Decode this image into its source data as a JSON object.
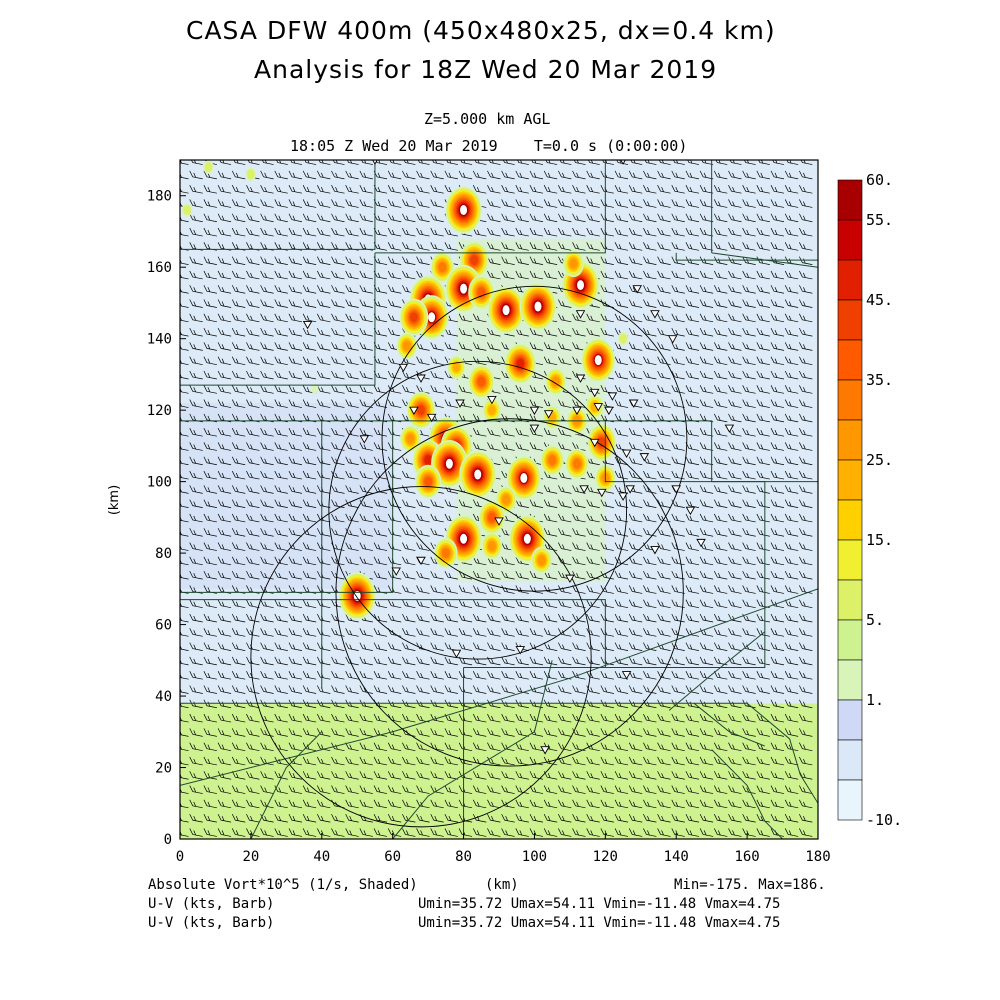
{
  "title": {
    "line1": "CASA DFW 400m (450x480x25, dx=0.4 km)",
    "line2": "Analysis for 18Z Wed 20 Mar 2019"
  },
  "subtitle": {
    "level": "Z=5.000 km AGL",
    "time": "18:05 Z Wed 20 Mar 2019    T=0.0 s (0:00:00)"
  },
  "footer": {
    "field1_label": "Absolute Vort*10^5 (1/s, Shaded)",
    "field1_stats": "Min=-175. Max=186.",
    "xunit": "(km)",
    "field2_label": "U-V (kts, Barb)",
    "field2_stats": "Umin=35.72 Umax=54.11 Vmin=-11.48 Vmax=4.75",
    "field3_label": "U-V (kts, Barb)",
    "field3_stats": "Umin=35.72 Umax=54.11 Vmin=-11.48 Vmax=4.75"
  },
  "chart_data": {
    "type": "heatmap",
    "title": "CASA DFW 400m (450x480x25, dx=0.4 km)",
    "xlabel": "(km)",
    "ylabel": "(km)",
    "xlim": [
      0,
      180
    ],
    "ylim": [
      0,
      190
    ],
    "xticks": [
      0,
      20,
      40,
      60,
      80,
      100,
      120,
      140,
      160,
      180
    ],
    "yticks": [
      0,
      20,
      40,
      60,
      80,
      100,
      120,
      140,
      160,
      180
    ],
    "colorbar": {
      "labels": [
        "60.",
        "55.",
        "45.",
        "35.",
        "25.",
        "15.",
        "5.",
        "1.",
        "-10."
      ],
      "colors": [
        "#a80000",
        "#c80000",
        "#e02000",
        "#f04000",
        "#ff5a00",
        "#ff7800",
        "#ff9800",
        "#ffb000",
        "#ffd000",
        "#f0f030",
        "#dcf068",
        "#cff290",
        "#d8f4b8",
        "#cfd8f4",
        "#dbe8f8",
        "#e8f5fc"
      ]
    },
    "background": {
      "north_color": "#dcebf7",
      "south_color": "#cff290",
      "south_boundary_y": 38
    },
    "vorticity_cells": [
      {
        "x": 80,
        "y": 176,
        "v": 60
      },
      {
        "x": 83,
        "y": 162,
        "v": 45
      },
      {
        "x": 74,
        "y": 160,
        "v": 35
      },
      {
        "x": 70,
        "y": 151,
        "v": 60
      },
      {
        "x": 71,
        "y": 146,
        "v": 55
      },
      {
        "x": 66,
        "y": 146,
        "v": 45
      },
      {
        "x": 80,
        "y": 154,
        "v": 60
      },
      {
        "x": 85,
        "y": 153,
        "v": 40
      },
      {
        "x": 92,
        "y": 148,
        "v": 60
      },
      {
        "x": 101,
        "y": 149,
        "v": 60
      },
      {
        "x": 113,
        "y": 155,
        "v": 60
      },
      {
        "x": 111,
        "y": 161,
        "v": 30
      },
      {
        "x": 118,
        "y": 134,
        "v": 55
      },
      {
        "x": 96,
        "y": 133,
        "v": 50
      },
      {
        "x": 106,
        "y": 128,
        "v": 30
      },
      {
        "x": 85,
        "y": 128,
        "v": 40
      },
      {
        "x": 68,
        "y": 120,
        "v": 45
      },
      {
        "x": 75,
        "y": 112,
        "v": 55
      },
      {
        "x": 78,
        "y": 110,
        "v": 50
      },
      {
        "x": 70,
        "y": 106,
        "v": 50
      },
      {
        "x": 76,
        "y": 105,
        "v": 60
      },
      {
        "x": 84,
        "y": 102,
        "v": 60
      },
      {
        "x": 70,
        "y": 100,
        "v": 40
      },
      {
        "x": 97,
        "y": 101,
        "v": 55
      },
      {
        "x": 105,
        "y": 106,
        "v": 35
      },
      {
        "x": 112,
        "y": 105,
        "v": 35
      },
      {
        "x": 119,
        "y": 111,
        "v": 45
      },
      {
        "x": 120,
        "y": 101,
        "v": 30
      },
      {
        "x": 92,
        "y": 95,
        "v": 30
      },
      {
        "x": 88,
        "y": 90,
        "v": 40
      },
      {
        "x": 80,
        "y": 84,
        "v": 60
      },
      {
        "x": 98,
        "y": 84,
        "v": 60
      },
      {
        "x": 75,
        "y": 80,
        "v": 35
      },
      {
        "x": 88,
        "y": 82,
        "v": 30
      },
      {
        "x": 102,
        "y": 78,
        "v": 30
      },
      {
        "x": 50,
        "y": 68,
        "v": 60
      },
      {
        "x": 112,
        "y": 117,
        "v": 30
      },
      {
        "x": 117,
        "y": 121,
        "v": 25
      },
      {
        "x": 64,
        "y": 138,
        "v": 30
      },
      {
        "x": 78,
        "y": 132,
        "v": 25
      },
      {
        "x": 88,
        "y": 120,
        "v": 25
      },
      {
        "x": 105,
        "y": 118,
        "v": 25
      },
      {
        "x": 65,
        "y": 112,
        "v": 30
      },
      {
        "x": 8,
        "y": 188,
        "v": 10
      },
      {
        "x": 20,
        "y": 186,
        "v": 10
      },
      {
        "x": 2,
        "y": 176,
        "v": 10
      },
      {
        "x": 125,
        "y": 140,
        "v": 10
      },
      {
        "x": 38,
        "y": 126,
        "v": 8
      }
    ],
    "radar_rings": [
      {
        "cx": 100,
        "cy": 112,
        "r": 43
      },
      {
        "cx": 84,
        "cy": 92,
        "r": 42
      },
      {
        "cx": 93,
        "cy": 69,
        "r": 49
      },
      {
        "cx": 68,
        "cy": 51,
        "r": 48
      }
    ],
    "wind_barb": {
      "u_range": [
        35.72,
        54.11
      ],
      "v_range": [
        -11.48,
        4.75
      ],
      "spacing_km": 4
    },
    "station_markers": [
      [
        55,
        190
      ],
      [
        125,
        190
      ],
      [
        129,
        154
      ],
      [
        134,
        147
      ],
      [
        139,
        140
      ],
      [
        113,
        147
      ],
      [
        36,
        144
      ],
      [
        63,
        132
      ],
      [
        68,
        129
      ],
      [
        113,
        129
      ],
      [
        117,
        125
      ],
      [
        122,
        124
      ],
      [
        128,
        122
      ],
      [
        118,
        121
      ],
      [
        121,
        120
      ],
      [
        112,
        120
      ],
      [
        100,
        120
      ],
      [
        104,
        119
      ],
      [
        88,
        123
      ],
      [
        66,
        120
      ],
      [
        71,
        118
      ],
      [
        79,
        122
      ],
      [
        52,
        112
      ],
      [
        100,
        115
      ],
      [
        117,
        111
      ],
      [
        126,
        108
      ],
      [
        131,
        107
      ],
      [
        140,
        98
      ],
      [
        144,
        92
      ],
      [
        147,
        83
      ],
      [
        134,
        81
      ],
      [
        119,
        97
      ],
      [
        127,
        98
      ],
      [
        125,
        96
      ],
      [
        114,
        98
      ],
      [
        90,
        89
      ],
      [
        61,
        75
      ],
      [
        68,
        78
      ],
      [
        78,
        52
      ],
      [
        96,
        53
      ],
      [
        110,
        73
      ],
      [
        126,
        46
      ],
      [
        103,
        25
      ],
      [
        155,
        115
      ]
    ]
  }
}
